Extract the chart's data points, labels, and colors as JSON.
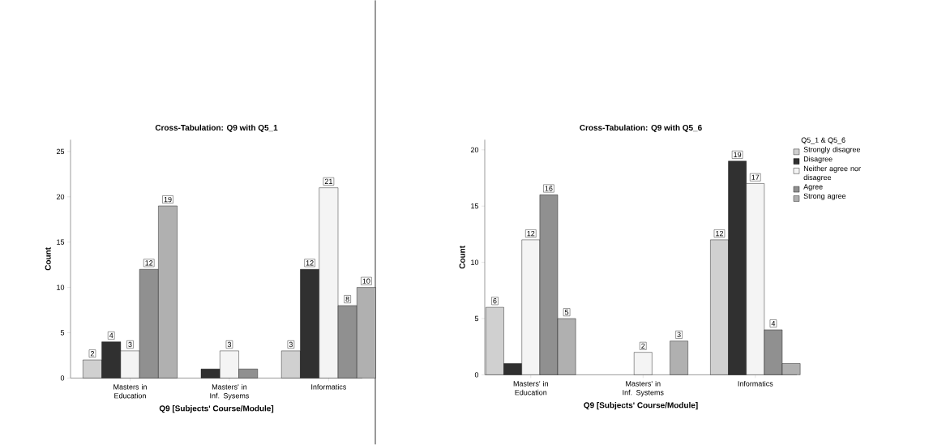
{
  "chart_data": [
    {
      "type": "bar",
      "title": "Cross-Tabulation: Q9 with Q5_1",
      "xlabel": "Q9 [Subjects' Course/Module]",
      "ylabel": "Count",
      "categories": [
        "Masters in Education",
        "Masters' in Inf. Sysems",
        "Informatics"
      ],
      "series": [
        {
          "color": "#d0d0d0",
          "values": [
            2,
            null,
            3
          ],
          "value_labels": [
            "2",
            null,
            "3"
          ]
        },
        {
          "color": "#303030",
          "values": [
            4,
            1,
            12
          ],
          "value_labels": [
            "4",
            null,
            "12"
          ]
        },
        {
          "color": "#f4f4f4",
          "values": [
            3,
            3,
            21
          ],
          "value_labels": [
            "3",
            "3",
            "21"
          ]
        },
        {
          "color": "#909090",
          "values": [
            12,
            1,
            8
          ],
          "value_labels": [
            "12",
            null,
            "8"
          ]
        },
        {
          "color": "#b0b0b0",
          "values": [
            19,
            null,
            10
          ],
          "value_labels": [
            "19",
            null,
            "10"
          ]
        }
      ],
      "ylim": [
        0,
        26.3
      ],
      "yticks": [
        0,
        5,
        10,
        15,
        20,
        25
      ],
      "grid": false,
      "legend": false
    },
    {
      "type": "bar",
      "title": "Cross-Tabulation: Q9 with Q5_6",
      "xlabel": "Q9 [Subjects' Course/Module]",
      "ylabel": "Count",
      "legend_title": "Q5_1 & Q5_6",
      "categories": [
        "Masters' in Education",
        "Masters' in Inf. Systems",
        "Informatics"
      ],
      "series": [
        {
          "name": "Strongly disagree",
          "color": "#d0d0d0",
          "values": [
            6,
            null,
            12
          ],
          "value_labels": [
            "6",
            null,
            "12"
          ]
        },
        {
          "name": "Disagree",
          "color": "#303030",
          "values": [
            1,
            null,
            19
          ],
          "value_labels": [
            null,
            null,
            "19"
          ]
        },
        {
          "name": "Neither agree nor disagree",
          "color": "#f4f4f4",
          "values": [
            12,
            2,
            17
          ],
          "value_labels": [
            "12",
            "2",
            "17"
          ]
        },
        {
          "name": "Agree",
          "color": "#909090",
          "values": [
            16,
            null,
            4
          ],
          "value_labels": [
            "16",
            null,
            "4"
          ]
        },
        {
          "name": "Strong agree",
          "color": "#b0b0b0",
          "values": [
            5,
            3,
            1
          ],
          "value_labels": [
            "5",
            "3",
            null
          ]
        }
      ],
      "ylim": [
        0,
        20.9
      ],
      "yticks": [
        0,
        5,
        10,
        15,
        20
      ],
      "grid": false,
      "legend": "right"
    }
  ]
}
